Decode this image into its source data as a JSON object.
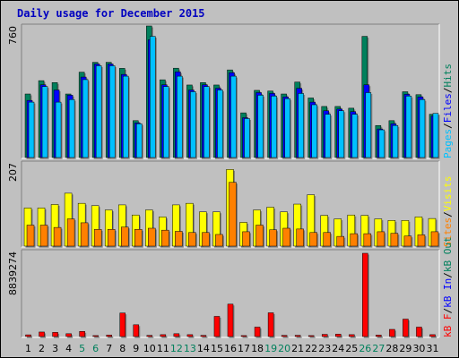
{
  "title": "Daily usage for December 2015",
  "chart_data": [
    {
      "type": "bar",
      "panel": "pages-files-hits",
      "scale_label": "760",
      "ylim": [
        0,
        760
      ],
      "x": [
        "1",
        "2",
        "3",
        "4",
        "5",
        "6",
        "7",
        "8",
        "9",
        "10",
        "11",
        "12",
        "13",
        "14",
        "15",
        "16",
        "17",
        "18",
        "19",
        "20",
        "21",
        "22",
        "23",
        "24",
        "25",
        "26",
        "27",
        "28",
        "29",
        "30",
        "31"
      ],
      "weekend_days": [
        "5",
        "6",
        "12",
        "13",
        "19",
        "20",
        "26",
        "27"
      ],
      "series": [
        {
          "name": "Hits",
          "color": "#00805c",
          "values": [
            367,
            444,
            433,
            367,
            493,
            550,
            550,
            515,
            213,
            760,
            449,
            516,
            419,
            433,
            419,
            506,
            258,
            388,
            384,
            367,
            436,
            344,
            295,
            295,
            285,
            700,
            185,
            213,
            380,
            363,
            250
          ]
        },
        {
          "name": "Files",
          "color": "#0000ff",
          "values": [
            330,
            420,
            390,
            360,
            465,
            540,
            540,
            480,
            200,
            680,
            420,
            495,
            390,
            420,
            400,
            490,
            230,
            375,
            370,
            350,
            400,
            320,
            270,
            280,
            265,
            420,
            165,
            195,
            365,
            350,
            240
          ]
        },
        {
          "name": "Pages",
          "color": "#00c0ff",
          "values": [
            320,
            410,
            320,
            335,
            450,
            530,
            530,
            470,
            195,
            700,
            410,
            470,
            380,
            410,
            390,
            470,
            225,
            360,
            355,
            340,
            370,
            305,
            250,
            270,
            250,
            375,
            160,
            185,
            355,
            335,
            255
          ]
        }
      ],
      "axis_label": [
        "Pages",
        "/",
        "Files",
        "/",
        "Hits"
      ]
    },
    {
      "type": "bar",
      "panel": "visits-sites",
      "scale_label": "207",
      "ylim": [
        0,
        207
      ],
      "x": [
        "1",
        "2",
        "3",
        "4",
        "5",
        "6",
        "7",
        "8",
        "9",
        "10",
        "11",
        "12",
        "13",
        "14",
        "15",
        "16",
        "17",
        "18",
        "19",
        "20",
        "21",
        "22",
        "23",
        "24",
        "25",
        "26",
        "27",
        "28",
        "29",
        "30",
        "31"
      ],
      "series": [
        {
          "name": "Visits",
          "color": "#ffff00",
          "values": [
            98,
            98,
            107,
            136,
            110,
            104,
            93,
            106,
            80,
            93,
            75,
            106,
            110,
            88,
            88,
            197,
            61,
            93,
            100,
            88,
            108,
            132,
            79,
            70,
            80,
            79,
            70,
            66,
            66,
            75,
            71
          ]
        },
        {
          "name": "Sites",
          "color": "#ff8000",
          "values": [
            54,
            54,
            48,
            70,
            60,
            43,
            43,
            49,
            43,
            46,
            41,
            38,
            35,
            35,
            30,
            164,
            37,
            54,
            42,
            46,
            44,
            35,
            35,
            25,
            32,
            32,
            37,
            33,
            26,
            29,
            37
          ]
        }
      ],
      "axis_label": [
        "Visits",
        "/",
        "Sites"
      ]
    },
    {
      "type": "bar",
      "panel": "kbytes",
      "scale_label": "8839274",
      "ylim": [
        0,
        8839274
      ],
      "x": [
        "1",
        "2",
        "3",
        "4",
        "5",
        "6",
        "7",
        "8",
        "9",
        "10",
        "11",
        "12",
        "13",
        "14",
        "15",
        "16",
        "17",
        "18",
        "19",
        "20",
        "21",
        "22",
        "23",
        "24",
        "25",
        "26",
        "27",
        "28",
        "29",
        "30",
        "31"
      ],
      "series": [
        {
          "name": "kB F",
          "color": "#ff0000",
          "values": [
            180000,
            480000,
            440000,
            300000,
            540000,
            100000,
            150000,
            2500000,
            1250000,
            120000,
            200000,
            300000,
            200000,
            120000,
            2140000,
            3440000,
            100000,
            1000000,
            2520000,
            120000,
            130000,
            100000,
            230000,
            250000,
            200000,
            8839274,
            150000,
            760000,
            1850000,
            1000000,
            200000
          ]
        }
      ],
      "axis_label": [
        "kB F",
        "/",
        "kB In",
        "/",
        "kB Out"
      ]
    }
  ],
  "colors": {
    "background": "#c0c0c0",
    "title": "#0000c0",
    "weekday_label": "#000000",
    "weekend_label": "#00805c",
    "pages": "#00c0ff",
    "files": "#0000ff",
    "hits": "#00805c",
    "visits": "#ffff00",
    "sites": "#ff8000",
    "kbf": "#ff0000",
    "kbin": "#0000ff",
    "kbout": "#00805c"
  }
}
